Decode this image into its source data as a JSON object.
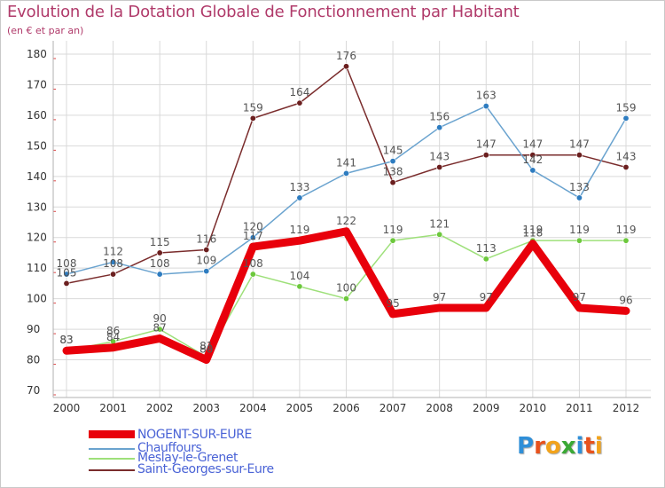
{
  "title": "Evolution de la Dotation Globale de Fonctionnement par Habitant",
  "subtitle": "(en € et par an)",
  "logo": {
    "text": "Proxiti",
    "letters": [
      "P",
      "r",
      "o",
      "x",
      "i",
      "t",
      "i"
    ],
    "colors": [
      "#2f8fd8",
      "#e8521d",
      "#f2a31b",
      "#3aa935",
      "#2f8fd8",
      "#e8521d",
      "#f2a31b"
    ]
  },
  "colors": {
    "title": "#b03a6a",
    "grid": "#d9d9d9",
    "axis_text": "#333333",
    "label_text": "#555555",
    "legend_text": "#4a63d6"
  },
  "chart_data": {
    "type": "line",
    "title": "Evolution de la Dotation Globale de Fonctionnement par Habitant",
    "subtitle": "(en € et par an)",
    "xlabel": "",
    "ylabel": "",
    "ylim": [
      70,
      180
    ],
    "yticks": [
      70,
      80,
      90,
      100,
      110,
      120,
      130,
      140,
      150,
      160,
      170,
      180
    ],
    "grid": true,
    "legend_position": "bottom-left",
    "categories": [
      "2000",
      "2001",
      "2002",
      "2003",
      "2004",
      "2005",
      "2006",
      "2007",
      "2008",
      "2009",
      "2010",
      "2011",
      "2012"
    ],
    "series": [
      {
        "name": "NOGENT-SUR-EURE",
        "color": "#e8000b",
        "marker": "#e8000b",
        "values": [
          83,
          84,
          87,
          80,
          117,
          119,
          122,
          95,
          97,
          97,
          118,
          97,
          96
        ],
        "labels": [
          "83",
          "84",
          "87",
          "80",
          "117",
          "119",
          "122",
          "95",
          "97",
          "97",
          "118",
          "97",
          "96"
        ]
      },
      {
        "name": "Chauffours",
        "color": "#6aa3cf",
        "marker": "#2e7cc0",
        "values": [
          108,
          112,
          108,
          109,
          120,
          133,
          141,
          145,
          156,
          163,
          142,
          133,
          159
        ],
        "labels": [
          "108",
          "112",
          "108",
          "109",
          "120",
          "133",
          "141",
          "145",
          "156",
          "163",
          "142",
          "133",
          "159"
        ]
      },
      {
        "name": "Meslay-le-Grenet",
        "color": "#9ee07a",
        "marker": "#6cc83c",
        "values": [
          83,
          86,
          90,
          81,
          108,
          104,
          100,
          119,
          121,
          113,
          119,
          119,
          119
        ],
        "labels": [
          "83",
          "86",
          "90",
          "81",
          "108",
          "104",
          "100",
          "119",
          "121",
          "113",
          "119",
          "119",
          "119"
        ]
      },
      {
        "name": "Saint-Georges-sur-Eure",
        "color": "#7a2c2c",
        "marker": "#6b1f1f",
        "values": [
          105,
          108,
          115,
          116,
          159,
          164,
          176,
          138,
          143,
          147,
          147,
          147,
          143
        ],
        "labels": [
          "105",
          "108",
          "115",
          "116",
          "159",
          "164",
          "176",
          "138",
          "143",
          "147",
          "147",
          "147",
          "143"
        ]
      }
    ]
  }
}
